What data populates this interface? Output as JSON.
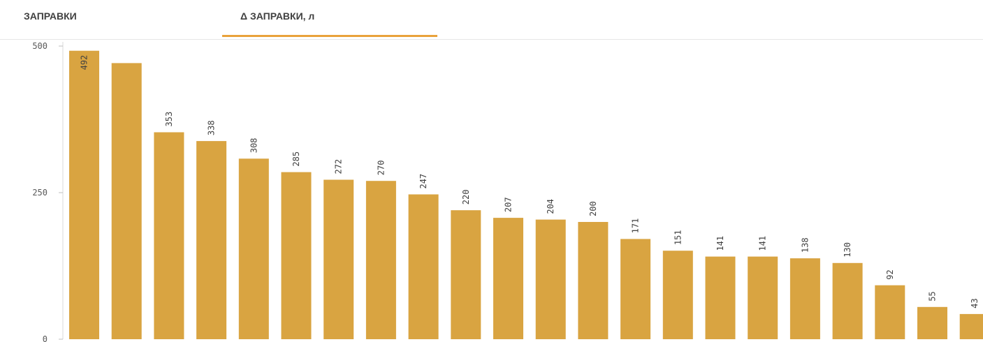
{
  "tabs": [
    {
      "label": "ЗАПРАВКИ",
      "active": false
    },
    {
      "label": "Δ ЗАПРАВКИ, л",
      "active": true
    }
  ],
  "colors": {
    "bar": "#d9a441",
    "accent": "#e9a23b"
  },
  "chart_data": {
    "type": "bar",
    "title": "",
    "xlabel": "",
    "ylabel": "",
    "ylim": [
      0,
      500
    ],
    "yticks": [
      0,
      250,
      500
    ],
    "values": [
      492,
      471,
      353,
      338,
      308,
      285,
      272,
      270,
      247,
      220,
      207,
      204,
      200,
      171,
      151,
      141,
      141,
      138,
      130,
      92,
      55,
      43
    ],
    "labels": [
      "492",
      "",
      "353",
      "338",
      "308",
      "285",
      "272",
      "270",
      "247",
      "220",
      "207",
      "204",
      "200",
      "171",
      "151",
      "141",
      "141",
      "138",
      "130",
      "92",
      "55",
      "43"
    ],
    "grid": false,
    "legend": "none"
  }
}
